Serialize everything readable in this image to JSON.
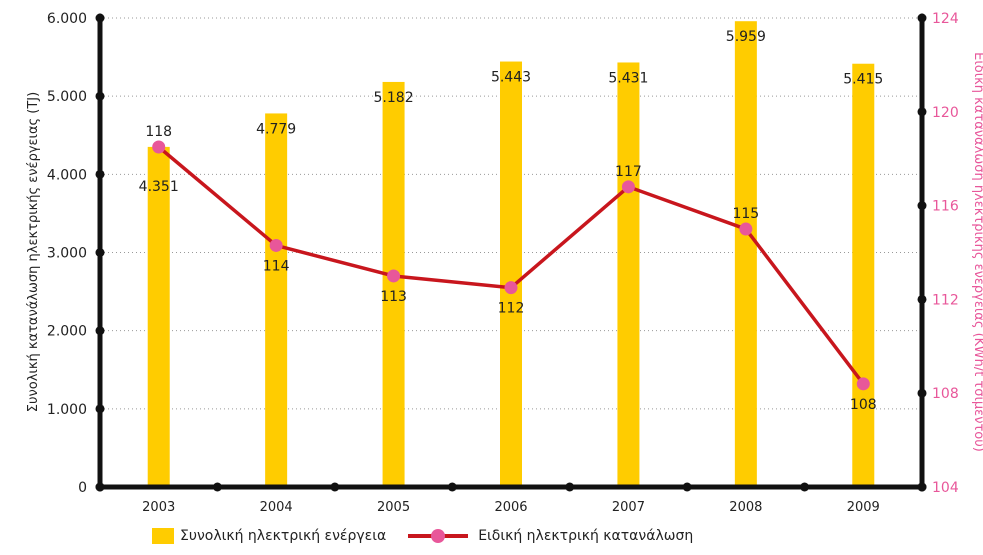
{
  "chart_data": {
    "type": "bar",
    "categories": [
      "2003",
      "2004",
      "2005",
      "2006",
      "2007",
      "2008",
      "2009"
    ],
    "series": [
      {
        "name": "Συνολική ηλεκτρική ενέργεια",
        "type": "bar",
        "axis": "left",
        "color": "#FFCC00",
        "values": [
          4351,
          4779,
          5182,
          5443,
          5431,
          5959,
          5415
        ],
        "labels": [
          "4.351",
          "4.779",
          "5.182",
          "5.443",
          "5.431",
          "5.959",
          "5.415"
        ]
      },
      {
        "name": "Ειδική ηλεκτρική κατανάλωση",
        "type": "line",
        "axis": "right",
        "color": "#C8161D",
        "marker_color": "#E8579A",
        "values": [
          118.5,
          114.3,
          113.0,
          112.5,
          116.8,
          115.0,
          108.4
        ],
        "labels": [
          "118",
          "114",
          "113",
          "112",
          "117",
          "115",
          "108"
        ]
      }
    ],
    "y_left": {
      "label": "Συνολική κατανάλωση ηλεκτρικής ενέργειας (TJ)",
      "range": [
        0,
        6000
      ],
      "ticks": [
        0,
        1000,
        2000,
        3000,
        4000,
        5000,
        6000
      ],
      "tick_labels": [
        "0",
        "1.000",
        "2.000",
        "3.000",
        "4.000",
        "5.000",
        "6.000"
      ]
    },
    "y_right": {
      "label": "Ειδική κατανάλωση ηλεκτρικής ενέργειας (KWh/t τσιμέντου)",
      "range": [
        104,
        124
      ],
      "ticks": [
        104,
        108,
        112,
        116,
        120,
        124
      ],
      "tick_labels": [
        "104",
        "108",
        "112",
        "116",
        "120",
        "124"
      ],
      "color": "#E8579A"
    },
    "grid": "horizontal dotted",
    "legend_position": "bottom-left"
  }
}
